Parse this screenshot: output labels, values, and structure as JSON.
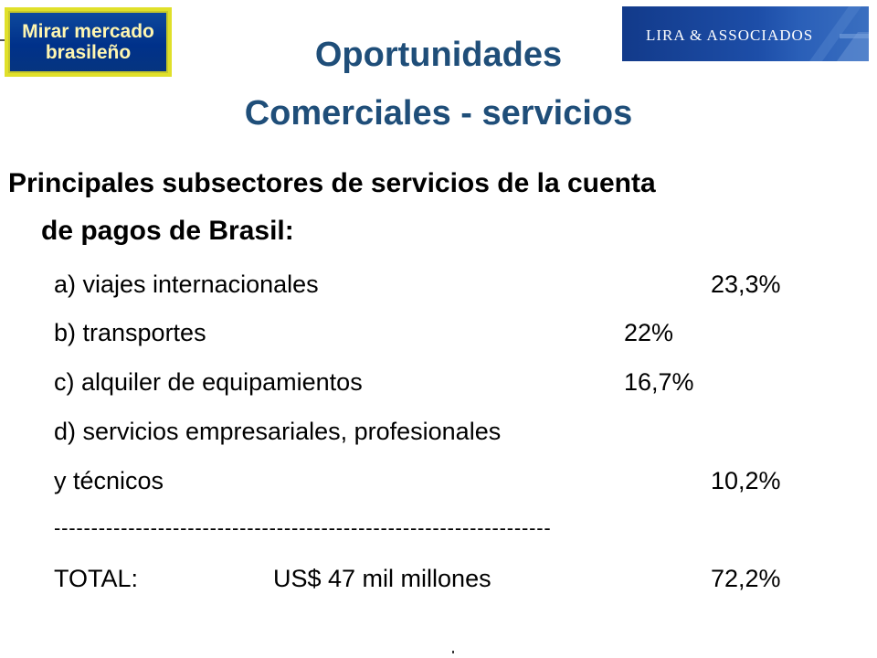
{
  "badge": {
    "line1": "Mirar mercado",
    "line2": "brasileño"
  },
  "logo": {
    "text": "LIRA & ASSOCIADOS"
  },
  "title": {
    "line1": "Oportunidades",
    "line2": "Comerciales - servicios"
  },
  "subheading": {
    "line1": "Principales subsectores de servicios de la cuenta",
    "line2": "de pagos de Brasil:"
  },
  "items": [
    {
      "label": "a) viajes internacionales",
      "value": "23,3%"
    },
    {
      "label": "b) transportes",
      "value": "22%"
    },
    {
      "label": "c) alquiler de equipamientos",
      "value": "16,7%"
    },
    {
      "label": "d) servicios empresariales, profesionales",
      "value": ""
    },
    {
      "label": "y técnicos",
      "value": "10,2%"
    }
  ],
  "separator": "-------------------------------------------------------------------",
  "total": {
    "label": "TOTAL:",
    "amount": "US$ 47 mil millones",
    "value": "72,2%"
  },
  "colors": {
    "title": "#1f4e79",
    "badge_bg": "#00318a",
    "badge_border": "#e0e02a",
    "badge_text": "#fff6b0",
    "logo_bg": "#1d4ea8"
  }
}
